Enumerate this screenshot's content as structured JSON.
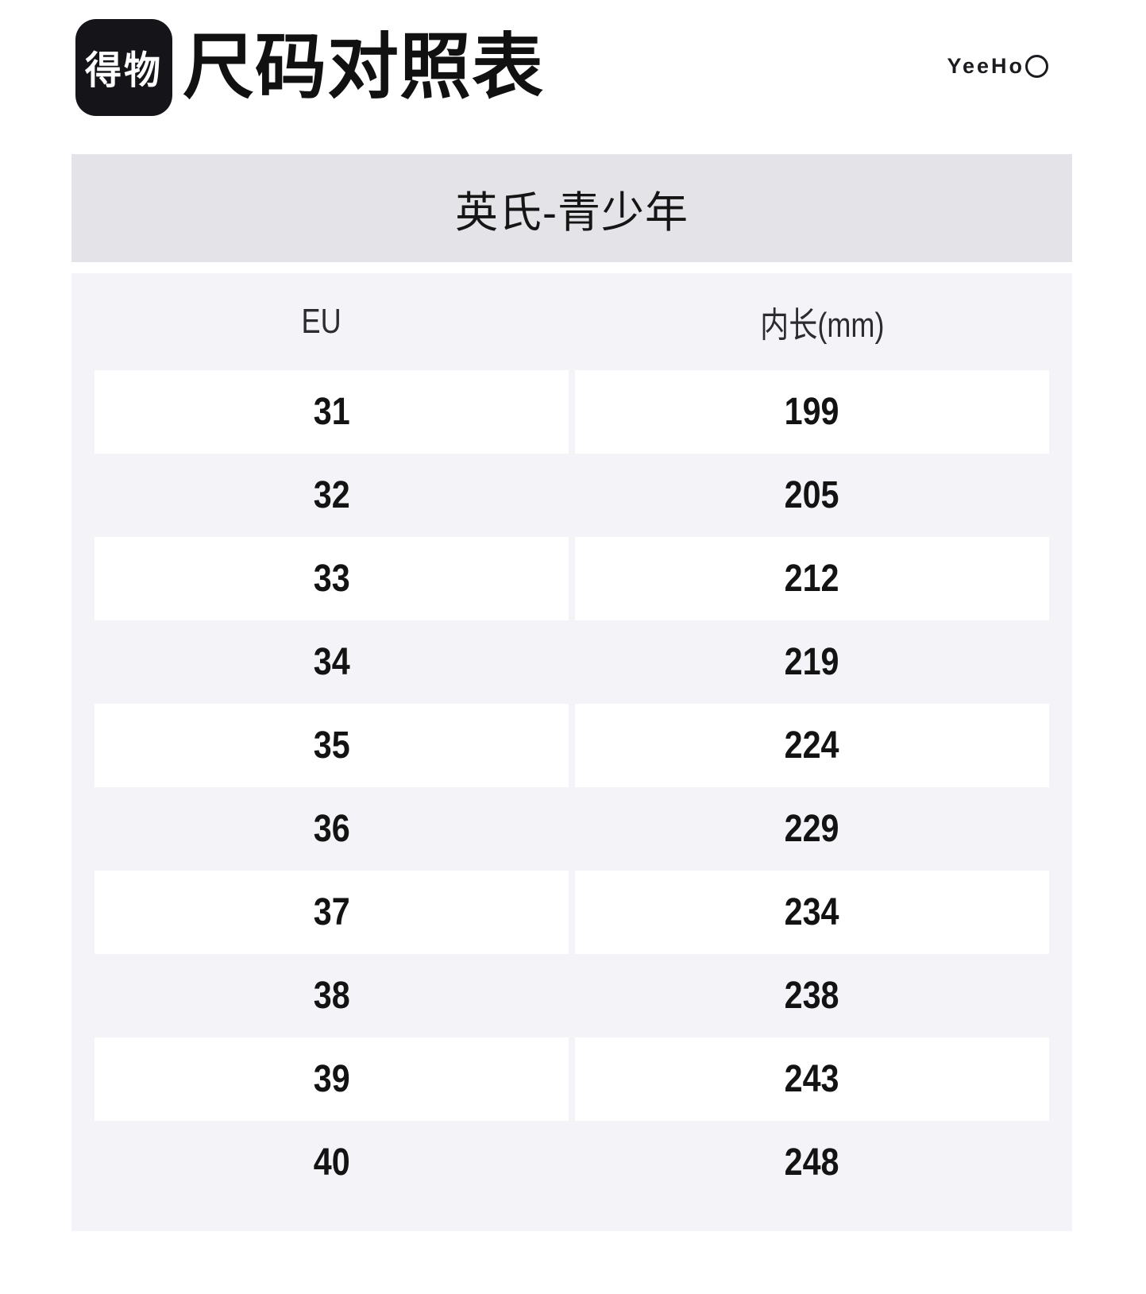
{
  "header": {
    "app_logo": "得物",
    "title": "尺码对照表",
    "brand_logo": "YeeHo"
  },
  "brand_bar": {
    "label": "英氏-青少年"
  },
  "size_table": {
    "columns": [
      "EU",
      "内长(mm)"
    ],
    "rows": [
      [
        "31",
        "199"
      ],
      [
        "32",
        "205"
      ],
      [
        "33",
        "212"
      ],
      [
        "34",
        "219"
      ],
      [
        "35",
        "224"
      ],
      [
        "36",
        "229"
      ],
      [
        "37",
        "234"
      ],
      [
        "38",
        "238"
      ],
      [
        "39",
        "243"
      ],
      [
        "40",
        "248"
      ]
    ]
  }
}
